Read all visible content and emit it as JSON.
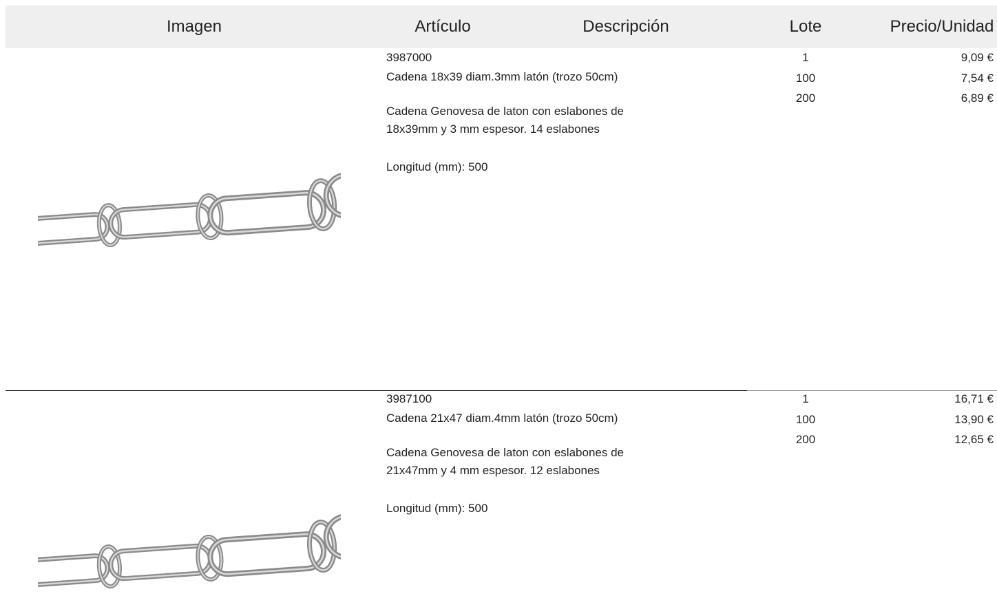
{
  "header": {
    "columns": [
      "Imagen",
      "Artículo",
      "Descripción",
      "Lote",
      "Precio/Unidad"
    ]
  },
  "products": [
    {
      "code": "3987000",
      "name": "Cadena 18x39 diam.3mm latón (trozo 50cm)",
      "description": [
        "Cadena Genovesa de laton con eslabones de",
        "18x39mm y 3 mm espesor. 14 eslabones"
      ],
      "length": "Longitud (mm): 500",
      "tiers": [
        {
          "lot": "1",
          "price": "9,09 €"
        },
        {
          "lot": "100",
          "price": "7,54 €"
        },
        {
          "lot": "200",
          "price": "6,89 €"
        }
      ]
    },
    {
      "code": "3987100",
      "name": "Cadena 21x47 diam.4mm latón (trozo 50cm)",
      "description": [
        "Cadena Genovesa de laton con eslabones de",
        "21x47mm y 4 mm espesor. 12 eslabones"
      ],
      "length": "Longitud (mm): 500",
      "tiers": [
        {
          "lot": "1",
          "price": "16,71 €"
        },
        {
          "lot": "100",
          "price": "13,90 €"
        },
        {
          "lot": "200",
          "price": "12,65 €"
        }
      ]
    }
  ]
}
